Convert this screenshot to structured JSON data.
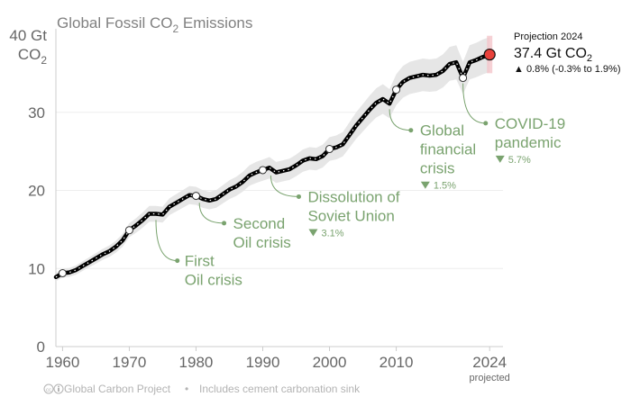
{
  "colors": {
    "line": "#000000",
    "line_dash": "#ffffff",
    "band": "#e6e6e6",
    "annotation": "#7aa36f",
    "projection_dot": "#e8413b",
    "projection_band": "#f4c6cb",
    "text": "#666666"
  },
  "chart_data": {
    "type": "line",
    "title_main": "Global Fossil CO",
    "title_sub": "2",
    "title_end": " Emissions",
    "ylabel_line1": "40 Gt",
    "ylabel_line2": "CO",
    "ylabel_sub": "2",
    "ylim": [
      0,
      40
    ],
    "xlim": [
      1959,
      2026
    ],
    "yticks": [
      0,
      10,
      20,
      30
    ],
    "xticks": [
      {
        "value": 1960,
        "label": "1960"
      },
      {
        "value": 1970,
        "label": "1970"
      },
      {
        "value": 1980,
        "label": "1980"
      },
      {
        "value": 1990,
        "label": "1990"
      },
      {
        "value": 2000,
        "label": "2000"
      },
      {
        "value": 2010,
        "label": "2010"
      },
      {
        "value": 2024,
        "label": "2024"
      }
    ],
    "x_sublabel": "projected",
    "series": [
      {
        "name": "Global fossil CO2 emissions (Gt CO2)",
        "x": [
          1959,
          1960,
          1961,
          1962,
          1963,
          1964,
          1965,
          1966,
          1967,
          1968,
          1969,
          1970,
          1971,
          1972,
          1973,
          1974,
          1975,
          1976,
          1977,
          1978,
          1979,
          1980,
          1981,
          1982,
          1983,
          1984,
          1985,
          1986,
          1987,
          1988,
          1989,
          1990,
          1991,
          1992,
          1993,
          1994,
          1995,
          1996,
          1997,
          1998,
          1999,
          2000,
          2001,
          2002,
          2003,
          2004,
          2005,
          2006,
          2007,
          2008,
          2009,
          2010,
          2011,
          2012,
          2013,
          2014,
          2015,
          2016,
          2017,
          2018,
          2019,
          2020,
          2021,
          2022,
          2023,
          2024
        ],
        "y": [
          8.9,
          9.4,
          9.5,
          9.8,
          10.3,
          10.8,
          11.3,
          11.8,
          12.2,
          12.8,
          13.6,
          14.9,
          15.5,
          16.2,
          17.0,
          17.0,
          16.9,
          17.9,
          18.4,
          18.9,
          19.4,
          19.3,
          18.9,
          18.7,
          18.9,
          19.5,
          20.1,
          20.5,
          21.1,
          21.9,
          22.3,
          22.6,
          22.9,
          22.3,
          22.5,
          22.7,
          23.2,
          23.8,
          24.1,
          24.0,
          24.4,
          25.3,
          25.5,
          25.9,
          27.1,
          28.3,
          29.3,
          30.3,
          31.2,
          31.7,
          31.1,
          32.9,
          33.9,
          34.4,
          34.6,
          34.8,
          34.7,
          34.8,
          35.3,
          36.2,
          36.4,
          34.4,
          36.4,
          36.7,
          37.1,
          37.4
        ],
        "uncertainty": 0.06
      }
    ],
    "milestones": [
      {
        "year": 1960,
        "value": 9.4
      },
      {
        "year": 1970,
        "value": 14.9
      },
      {
        "year": 1980,
        "value": 19.3
      },
      {
        "year": 1990,
        "value": 22.6
      },
      {
        "year": 2000,
        "value": 25.3
      },
      {
        "year": 2010,
        "value": 32.9
      },
      {
        "year": 2020,
        "value": 34.4
      }
    ],
    "projection": {
      "year": 2024,
      "value": 37.4,
      "low": 35.0,
      "high": 39.8,
      "label": "Projection 2024",
      "value_label": "37.4 Gt CO",
      "value_sub": "2",
      "change": "▲ 0.8% (-0.3% to 1.9%)"
    },
    "annotations": [
      {
        "id": "first-oil",
        "event_year": 1974,
        "event_value": 16.9,
        "label_year": 1977.2,
        "label_value": 11.0,
        "line1": "First",
        "line2": "Oil crisis",
        "drop": ""
      },
      {
        "id": "second-oil",
        "event_year": 1980.5,
        "event_value": 19.1,
        "label_year": 1984.2,
        "label_value": 15.8,
        "line1": "Second",
        "line2": "Oil crisis",
        "drop": ""
      },
      {
        "id": "soviet",
        "event_year": 1991.2,
        "event_value": 22.6,
        "label_year": 1995.4,
        "label_value": 19.2,
        "line1": "Dissolution of",
        "line2": "Soviet Union",
        "drop": "3.1%"
      },
      {
        "id": "gfc",
        "event_year": 2009,
        "event_value": 31.1,
        "label_year": 2012.2,
        "label_value": 27.7,
        "line1": "Global",
        "line2": "financial",
        "line3": "crisis",
        "drop": "1.5%"
      },
      {
        "id": "covid",
        "event_year": 2020,
        "event_value": 34.4,
        "label_year": 2023.4,
        "label_value": 28.6,
        "line1": "COVID-19",
        "line2": "pandemic",
        "drop": "5.7%"
      }
    ]
  },
  "footer": {
    "source": "Global Carbon Project",
    "bullet": "•",
    "note": "Includes cement carbonation sink"
  }
}
